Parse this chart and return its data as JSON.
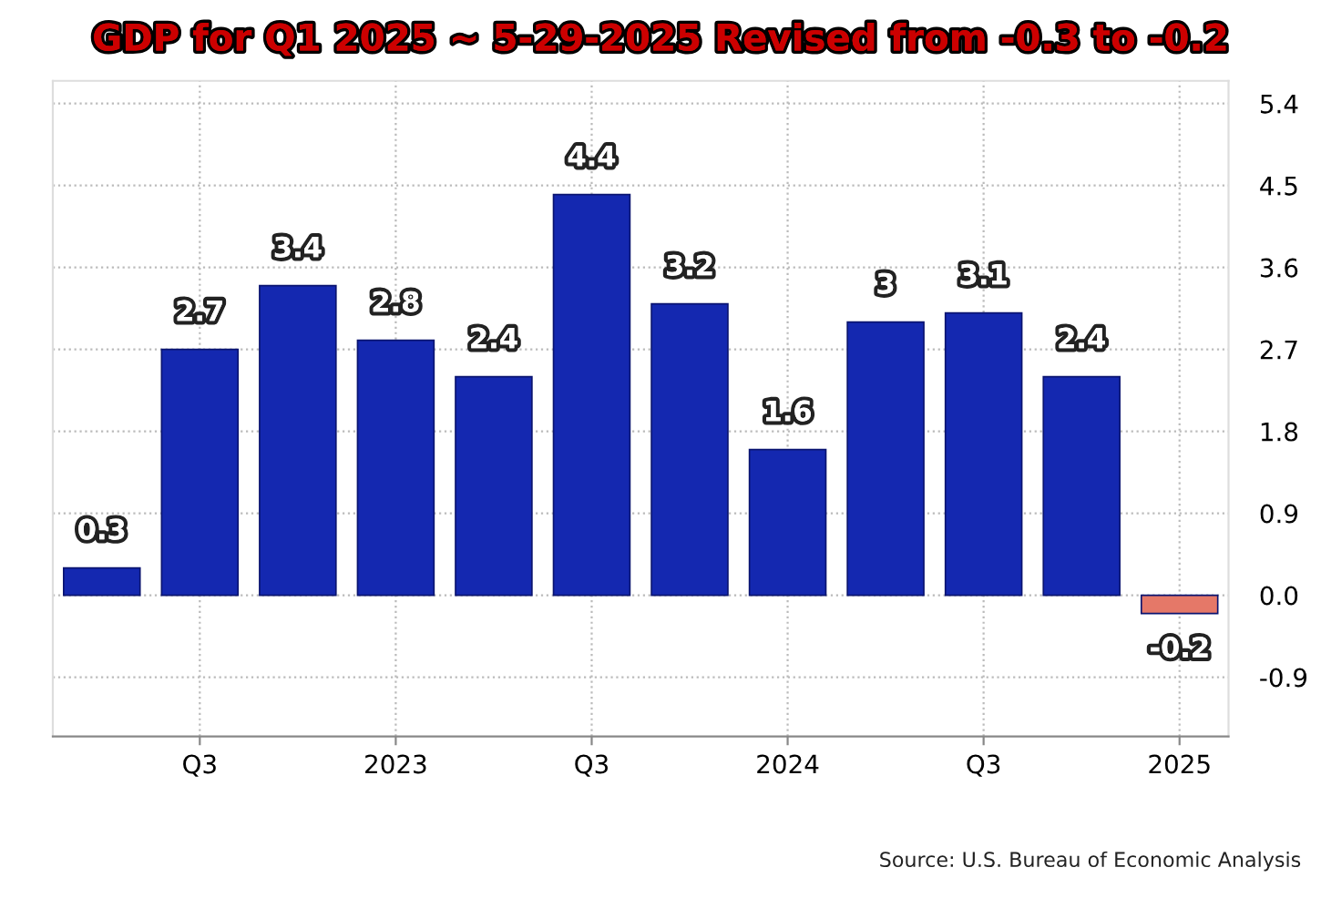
{
  "chart_data": {
    "type": "bar",
    "title": "GDP for Q1 2025 ~ 5-29-2025 Revised from -0.3 to -0.2",
    "categories": [
      null,
      "Q3",
      null,
      "2023",
      null,
      "Q3",
      null,
      "2024",
      null,
      "Q3",
      null,
      "2025"
    ],
    "values": [
      0.3,
      2.7,
      3.4,
      2.8,
      2.4,
      4.4,
      3.2,
      1.6,
      3,
      3.1,
      2.4,
      -0.2
    ],
    "colors": [
      "#1428b0",
      "#1428b0",
      "#1428b0",
      "#1428b0",
      "#1428b0",
      "#1428b0",
      "#1428b0",
      "#1428b0",
      "#1428b0",
      "#1428b0",
      "#1428b0",
      "#e57868"
    ],
    "ylim": [
      -1.55,
      5.65
    ],
    "yticks": [
      {
        "value": -0.9,
        "label": "-0.9"
      },
      {
        "value": 0,
        "label": "0.0"
      },
      0.9,
      1.8,
      2.7,
      3.6,
      4.5,
      5.4
    ],
    "data_labels": true,
    "grid": true,
    "annotations": [
      "Source: U.S. Bureau of Economic Analysis"
    ]
  }
}
